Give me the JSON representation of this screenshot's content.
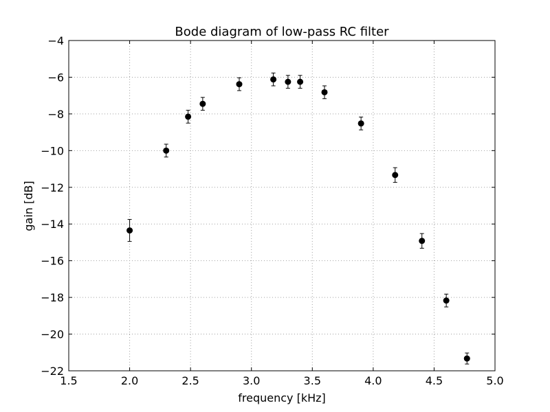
{
  "chart_data": {
    "type": "scatter",
    "title": "Bode diagram of low-pass RC filter",
    "xlabel": "frequency [kHz]",
    "ylabel": "gain [dB]",
    "xlim": [
      1.5,
      5.0
    ],
    "ylim": [
      -22,
      -4
    ],
    "xticks": [
      1.5,
      2.0,
      2.5,
      3.0,
      3.5,
      4.0,
      4.5,
      5.0
    ],
    "yticks": [
      -22,
      -20,
      -18,
      -16,
      -14,
      -12,
      -10,
      -8,
      -6,
      -4
    ],
    "xtick_labels": [
      "1.5",
      "2.0",
      "2.5",
      "3.0",
      "3.5",
      "4.0",
      "4.5",
      "5.0"
    ],
    "ytick_labels": [
      "−22",
      "−20",
      "−18",
      "−16",
      "−14",
      "−12",
      "−10",
      "−8",
      "−6",
      "−4"
    ],
    "grid": true,
    "error_bars": true,
    "marker_color": "#000000",
    "series": [
      {
        "x": [
          2.0,
          2.3,
          2.48,
          2.6,
          2.9,
          3.18,
          3.3,
          3.4,
          3.6,
          3.9,
          4.18,
          4.4,
          4.6,
          4.77
        ],
        "y": [
          -14.35,
          -10.0,
          -8.15,
          -7.45,
          -6.38,
          -6.12,
          -6.25,
          -6.25,
          -6.82,
          -8.52,
          -11.33,
          -14.92,
          -18.17,
          -21.33
        ],
        "yerr": [
          0.6,
          0.35,
          0.35,
          0.35,
          0.35,
          0.35,
          0.35,
          0.35,
          0.35,
          0.35,
          0.4,
          0.4,
          0.35,
          0.3
        ]
      }
    ]
  }
}
